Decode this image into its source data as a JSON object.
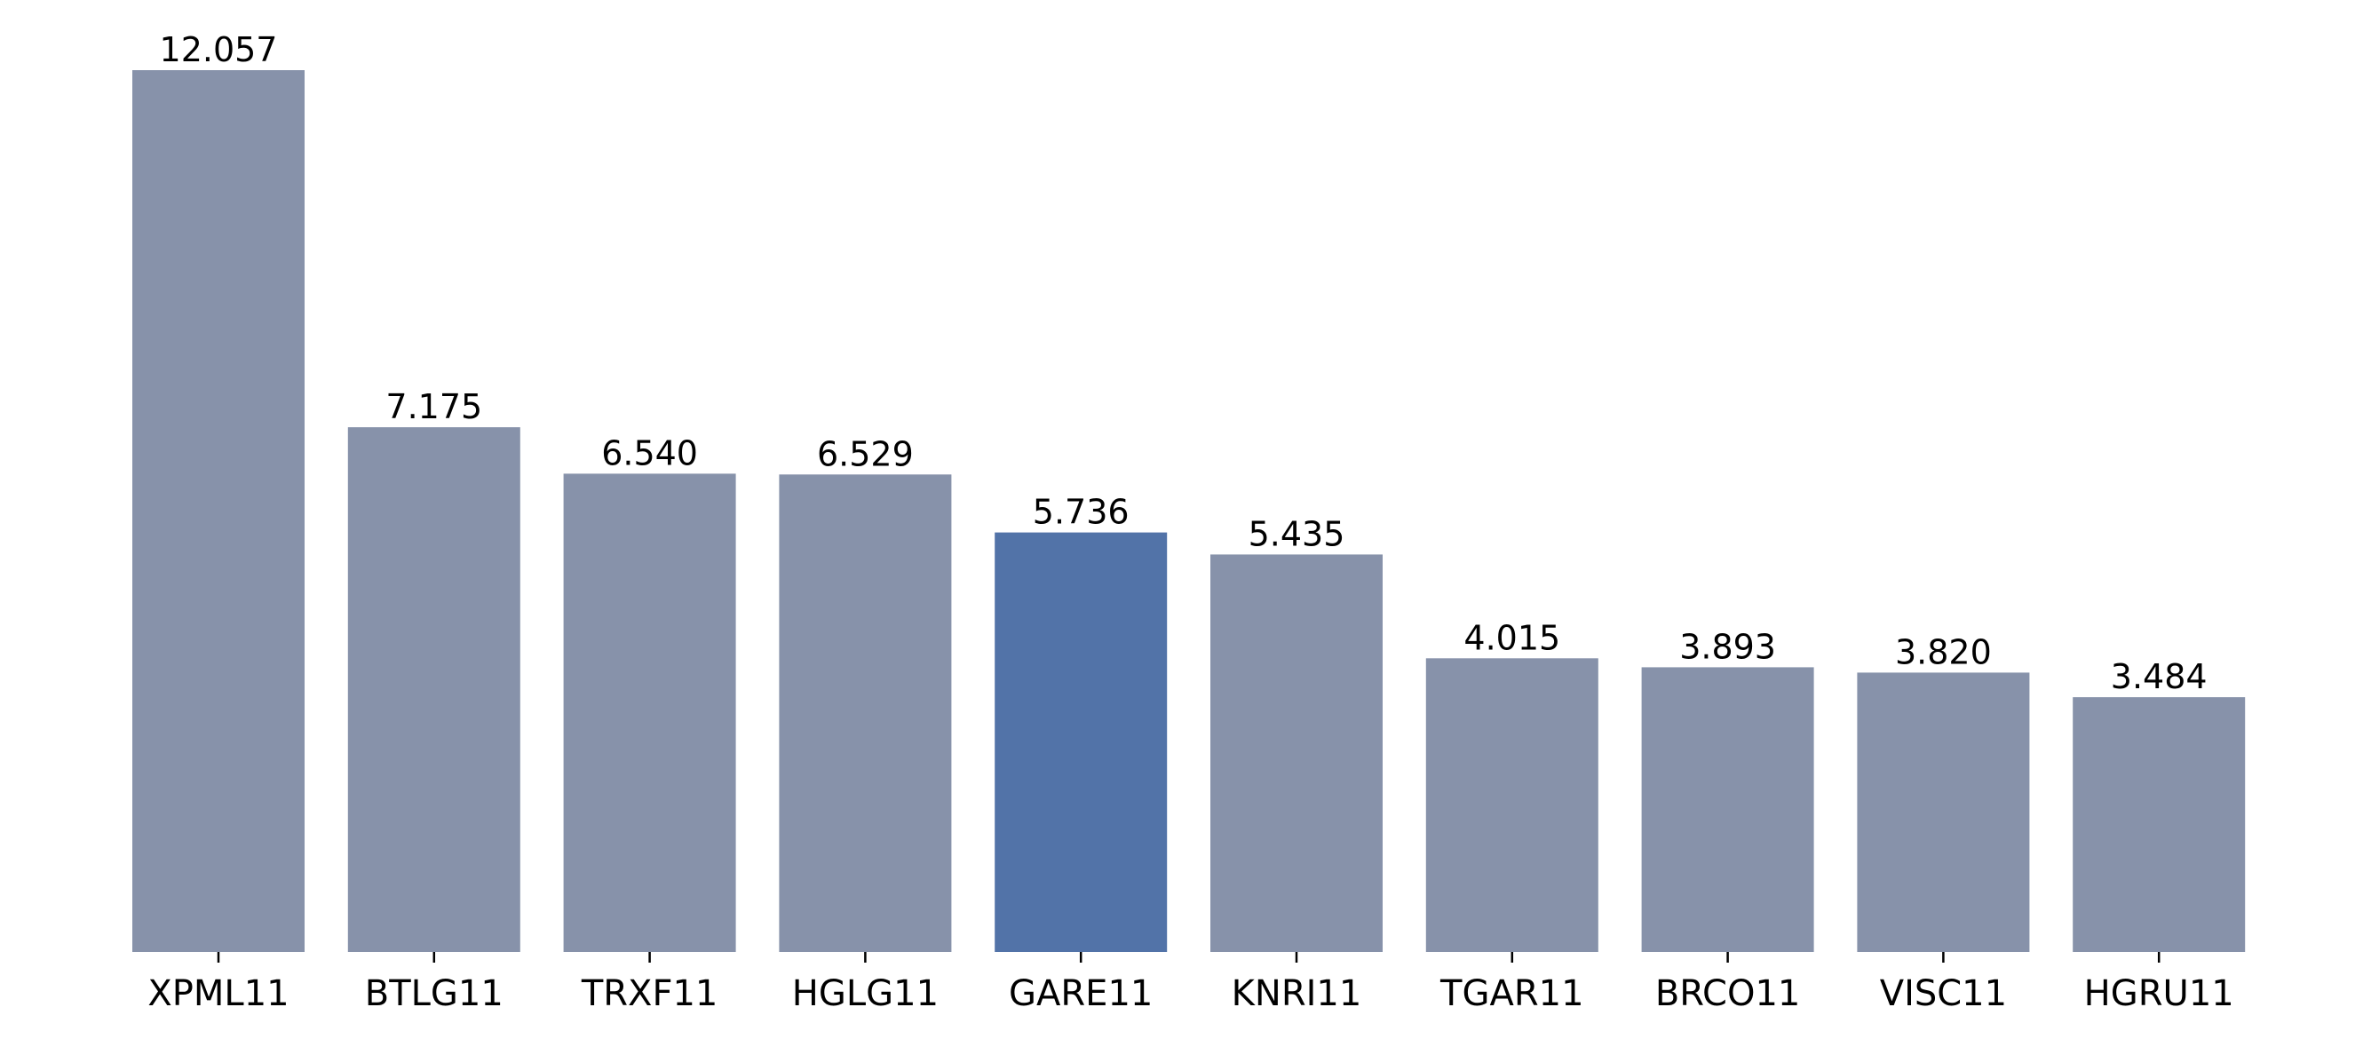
{
  "chart_data": {
    "type": "bar",
    "categories": [
      "XPML11",
      "BTLG11",
      "TRXF11",
      "HGLG11",
      "GARE11",
      "KNRI11",
      "TGAR11",
      "BRCO11",
      "VISC11",
      "HGRU11"
    ],
    "values": [
      12.057,
      7.175,
      6.54,
      6.529,
      5.736,
      5.435,
      4.015,
      3.893,
      3.82,
      3.484
    ],
    "value_labels": [
      "12.057",
      "7.175",
      "6.540",
      "6.529",
      "5.736",
      "5.435",
      "4.015",
      "3.893",
      "3.820",
      "3.484"
    ],
    "highlight_index": 4,
    "title": "",
    "xlabel": "",
    "ylabel": "",
    "ylim": [
      0,
      12.66
    ],
    "grid": false,
    "legend": "none",
    "colors": {
      "bar": "#8792AA",
      "highlight": "#5273A8",
      "text": "#000000"
    }
  }
}
